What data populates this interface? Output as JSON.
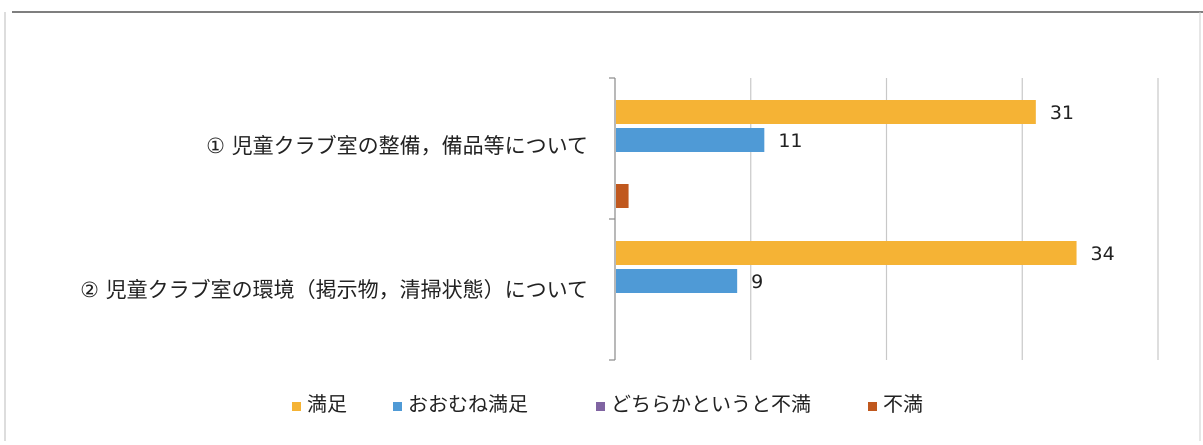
{
  "chart_data": {
    "type": "bar",
    "orientation": "horizontal",
    "categories": [
      "① 児童クラブ室の整備，備品等について",
      "② 児童クラブ室の環境（掲示物，清掃状態）について"
    ],
    "series": [
      {
        "name": "満足",
        "values": [
          31,
          34
        ],
        "color": "#f5b335",
        "labels": [
          "31",
          "34"
        ]
      },
      {
        "name": "おおむね満足",
        "values": [
          11,
          9
        ],
        "color": "#4f9ad6",
        "labels": [
          "11",
          "9"
        ]
      },
      {
        "name": "どちらかというと不満",
        "values": [
          0,
          0
        ],
        "color": "#8064a2",
        "labels": [
          "",
          ""
        ]
      },
      {
        "name": "不満",
        "values": [
          1,
          0
        ],
        "color": "#c0581e",
        "labels": [
          "",
          ""
        ]
      }
    ],
    "xlim": [
      0,
      40
    ],
    "x_gridlines": [
      0,
      10,
      20,
      30,
      40
    ],
    "grid": true,
    "legend_position": "bottom",
    "tick_labels_shown": false
  }
}
